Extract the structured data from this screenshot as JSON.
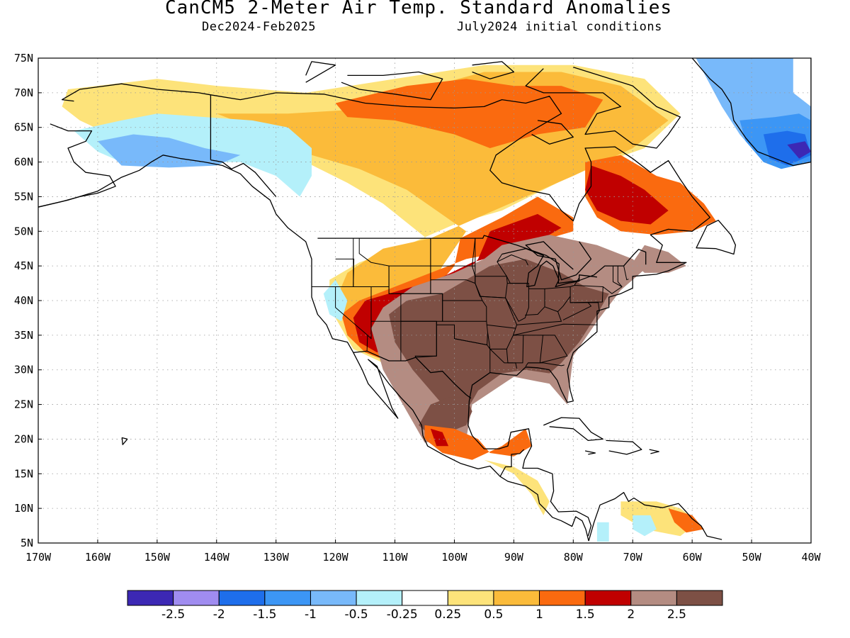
{
  "header": {
    "title": "CanCM5 2-Meter Air Temp. Standard Anomalies",
    "period": "Dec2024-Feb2025",
    "initial_conditions": "July2024 initial conditions"
  },
  "map": {
    "lat_range": [
      5,
      75
    ],
    "lon_range": [
      -170,
      -40
    ],
    "lat_ticks": [
      "75N",
      "70N",
      "65N",
      "60N",
      "55N",
      "50N",
      "45N",
      "40N",
      "35N",
      "30N",
      "25N",
      "20N",
      "15N",
      "10N",
      "5N"
    ],
    "lon_ticks": [
      "170W",
      "160W",
      "150W",
      "140W",
      "130W",
      "120W",
      "110W",
      "100W",
      "90W",
      "80W",
      "70W",
      "60W",
      "50W",
      "40W"
    ],
    "grid": true,
    "land_outline_color": "#000000",
    "regions": [
      {
        "name": "Alaska/NW Canada cool anomaly",
        "level": "-0.5",
        "color": "#b4f0fa"
      },
      {
        "name": "Southern Greenland strong cool anomaly",
        "level": "-1.5",
        "color": "#1e6eeb"
      },
      {
        "name": "Canadian Arctic warm anomaly",
        "level": "1",
        "color": "#fba01e"
      },
      {
        "name": "Northern Plains warm anomaly",
        "level": "2",
        "color": "#c00000"
      },
      {
        "name": "Southern and Central US very warm anomaly",
        "level": "2.5",
        "color": "#7d5045"
      },
      {
        "name": "Quebec/Labrador warm anomaly",
        "level": "2",
        "color": "#c00000"
      },
      {
        "name": "Mexico warm anomaly",
        "level": "2.5",
        "color": "#7d5045"
      }
    ]
  },
  "colorbar": {
    "colors": [
      "#3c28b4",
      "#a08cf0",
      "#1e6eeb",
      "#3c96f5",
      "#78b9fa",
      "#b4f0fa",
      "#ffffff",
      "#fde37a",
      "#fbbb3a",
      "#fa6a0f",
      "#c00000",
      "#b48c82",
      "#7d5045"
    ],
    "labels": [
      "-2.5",
      "-2",
      "-1.5",
      "-1",
      "-0.5",
      "-0.25",
      "0.25",
      "0.5",
      "1",
      "1.5",
      "2",
      "2.5"
    ]
  }
}
